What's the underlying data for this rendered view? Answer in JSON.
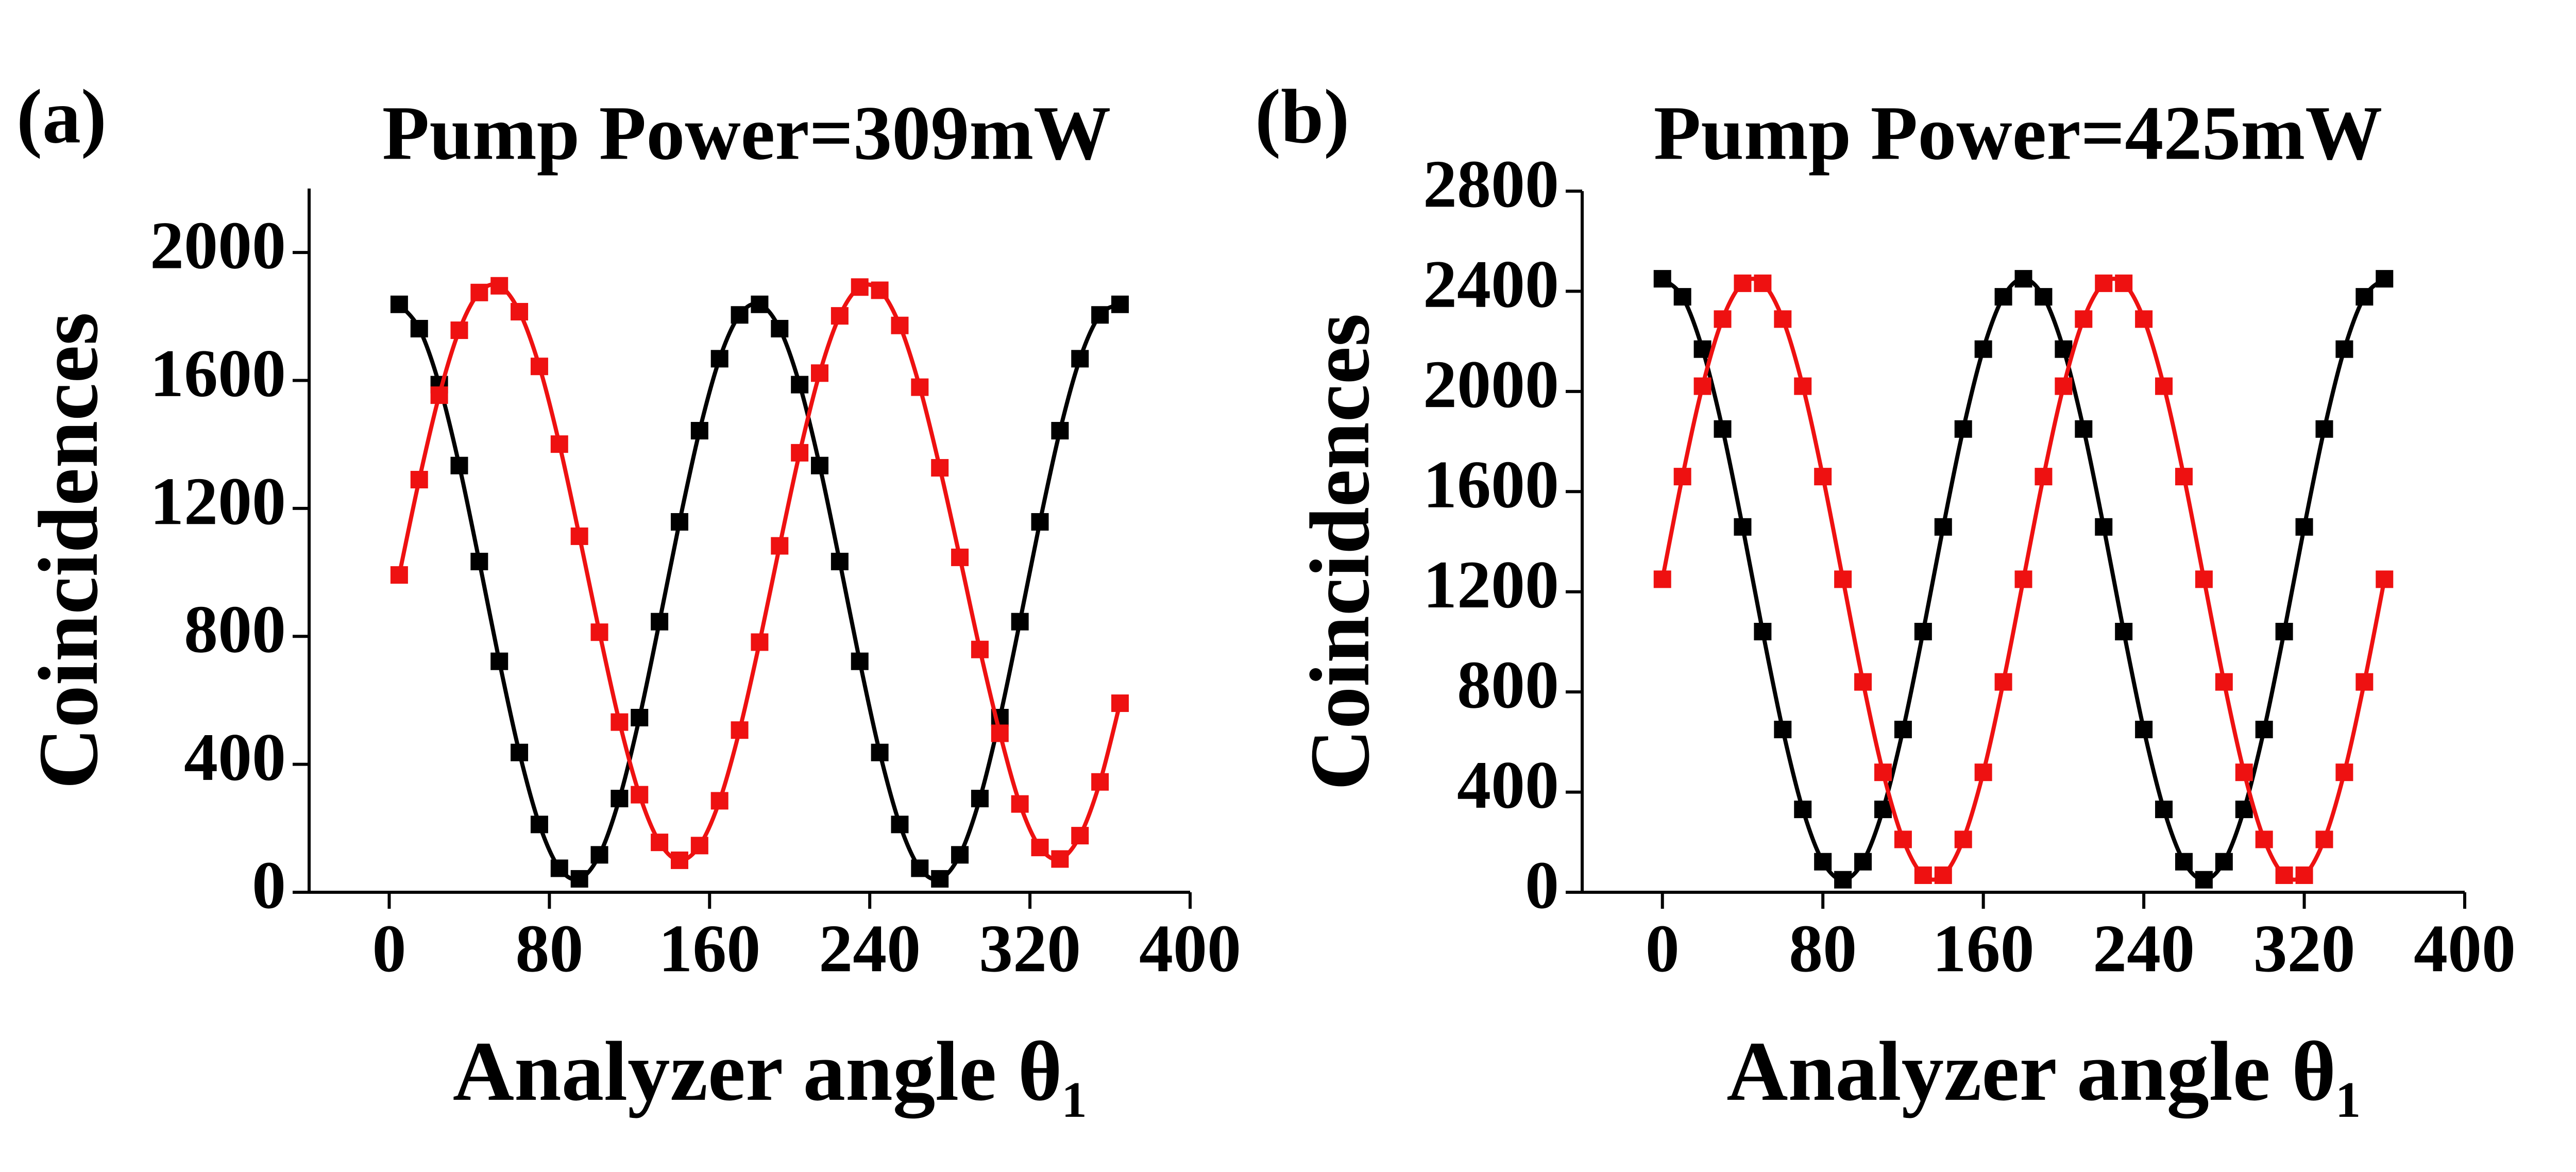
{
  "chart_data": [
    {
      "type": "line",
      "panel_label": "(a)",
      "title": "Pump Power=309mW",
      "xlabel": "Analyzer angle θ₁",
      "ylabel": "Coincidences",
      "x": [
        5,
        15,
        25,
        35,
        45,
        55,
        65,
        75,
        85,
        95,
        105,
        115,
        125,
        135,
        145,
        155,
        165,
        175,
        185,
        195,
        205,
        215,
        225,
        235,
        245,
        255,
        265,
        275,
        285,
        295,
        305,
        315,
        325,
        335,
        345,
        355,
        365
      ],
      "series": [
        {
          "color": "#000000",
          "values": [
            1838,
            1762,
            1587,
            1334,
            1034,
            722,
            437,
            212,
            75,
            42,
            117,
            293,
            546,
            846,
            1158,
            1443,
            1668,
            1805,
            1838,
            1762,
            1587,
            1334,
            1034,
            722,
            437,
            212,
            75,
            42,
            117,
            293,
            546,
            846,
            1158,
            1443,
            1668,
            1805,
            1838
          ]
        },
        {
          "color": "#ee1111",
          "values": [
            992,
            1290,
            1554,
            1757,
            1875,
            1896,
            1815,
            1644,
            1401,
            1113,
            813,
            532,
            305,
            156,
            100,
            146,
            286,
            507,
            782,
            1083,
            1374,
            1623,
            1802,
            1892,
            1882,
            1772,
            1579,
            1327,
            1047,
            759,
            497,
            276,
            140,
            104,
            177,
            345,
            591
          ]
        }
      ],
      "xlim": [
        -40,
        400
      ],
      "xticks": [
        0,
        80,
        160,
        240,
        320,
        400
      ],
      "ylim": [
        0,
        2200
      ],
      "yticks": [
        0,
        400,
        800,
        1200,
        1600,
        2000
      ]
    },
    {
      "type": "line",
      "panel_label": "(b)",
      "title": "Pump Power=425mW",
      "xlabel": "Analyzer angle θ₁",
      "ylabel": "Coincidences",
      "x": [
        0,
        10,
        20,
        30,
        40,
        50,
        60,
        70,
        80,
        90,
        100,
        110,
        120,
        130,
        140,
        150,
        160,
        170,
        180,
        190,
        200,
        210,
        220,
        230,
        240,
        250,
        260,
        270,
        280,
        290,
        300,
        310,
        320,
        330,
        340,
        350,
        360
      ],
      "series": [
        {
          "color": "#000000",
          "values": [
            2450,
            2378,
            2169,
            1850,
            1459,
            1041,
            650,
            331,
            122,
            50,
            122,
            331,
            650,
            1041,
            1459,
            1850,
            2169,
            2378,
            2450,
            2378,
            2169,
            1850,
            1459,
            1041,
            650,
            331,
            122,
            50,
            122,
            331,
            650,
            1041,
            1459,
            1850,
            2169,
            2378,
            2450
          ]
        },
        {
          "color": "#ee1111",
          "values": [
            1250,
            1660,
            2021,
            2289,
            2432,
            2432,
            2289,
            2021,
            1660,
            1250,
            840,
            479,
            211,
            68,
            68,
            211,
            479,
            840,
            1250,
            1660,
            2021,
            2289,
            2432,
            2432,
            2289,
            2021,
            1660,
            1250,
            840,
            479,
            211,
            68,
            68,
            211,
            479,
            840,
            1250
          ]
        }
      ],
      "xlim": [
        -40,
        400
      ],
      "xticks": [
        0,
        80,
        160,
        240,
        320,
        400
      ],
      "ylim": [
        0,
        2800
      ],
      "yticks": [
        0,
        400,
        800,
        1200,
        1600,
        2000,
        2400,
        2800
      ]
    }
  ]
}
